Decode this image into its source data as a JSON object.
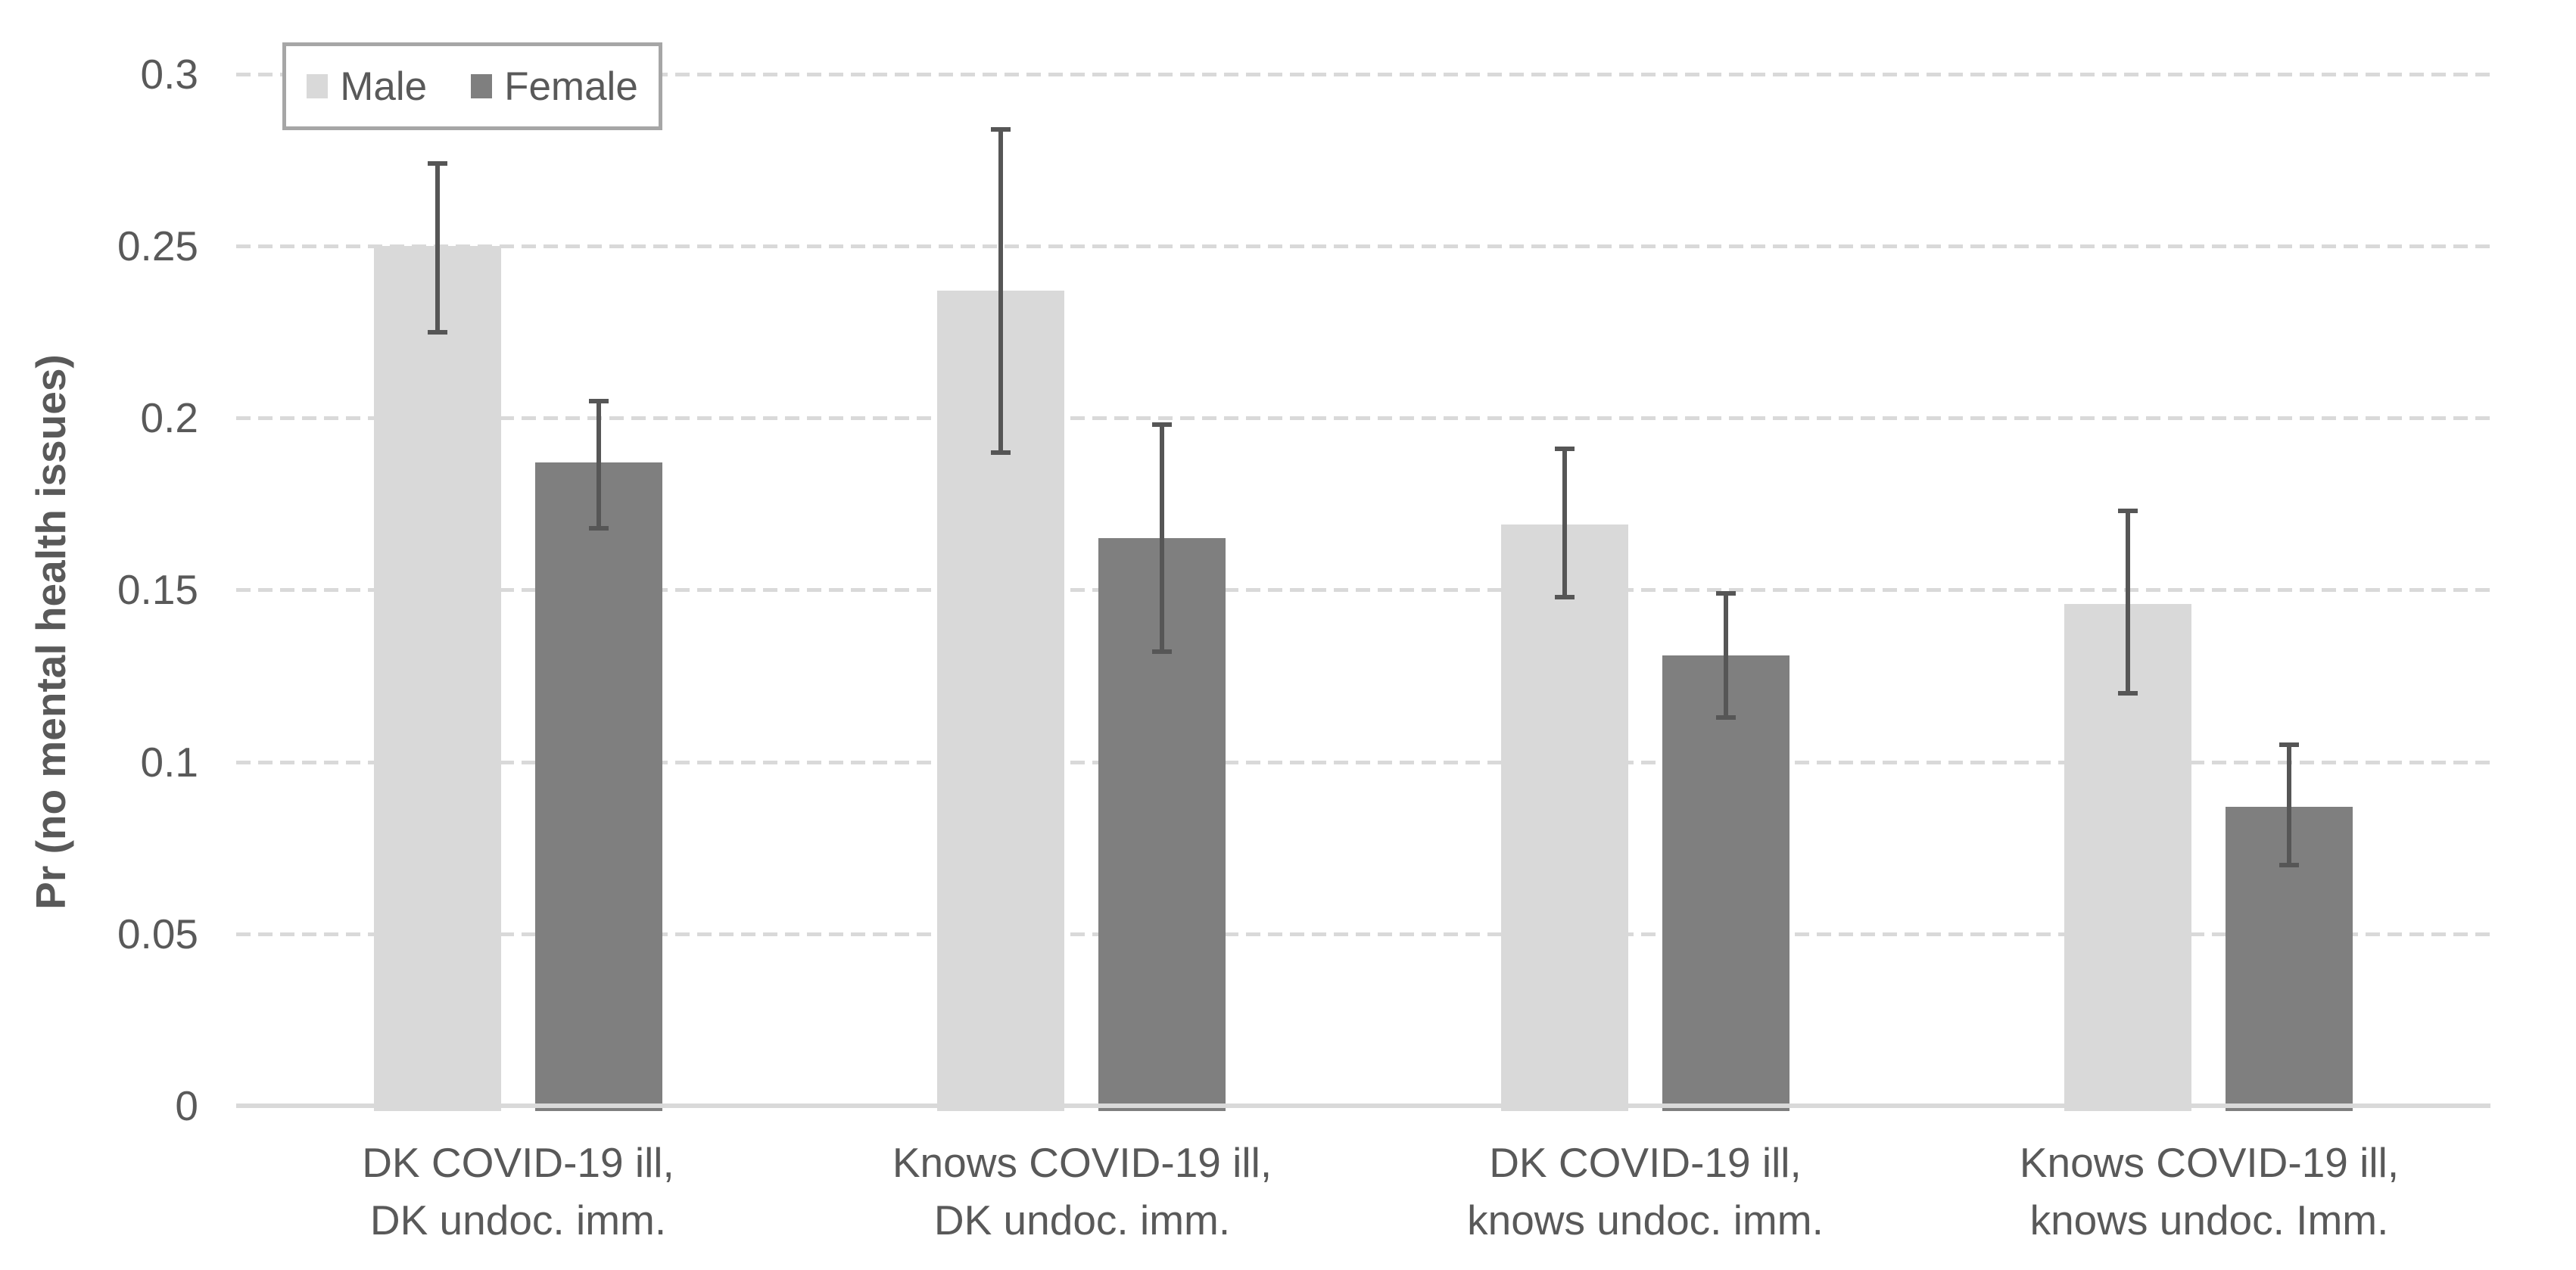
{
  "chart_data": {
    "type": "bar",
    "title": "",
    "xlabel": "",
    "ylabel": "Pr (no mental health issues)",
    "ylim": [
      0,
      0.3
    ],
    "yticks": [
      0,
      0.05,
      0.1,
      0.15,
      0.2,
      0.25,
      0.3
    ],
    "ytick_labels": [
      "0",
      "0.05",
      "0.1",
      "0.15",
      "0.2",
      "0.25",
      "0.3"
    ],
    "grid": "horizontal-dashed",
    "grid_color": "#d9d9d9",
    "axis_line_color": "#d9d9d9",
    "error_bar_color": "#565656",
    "legend_position": "top-left-inside",
    "categories": [
      [
        "DK COVID-19 ill,",
        "DK undoc. imm."
      ],
      [
        "Knows COVID-19 ill,",
        "DK undoc. imm."
      ],
      [
        "DK COVID-19 ill,",
        "knows undoc. imm."
      ],
      [
        "Knows COVID-19 ill,",
        "knows undoc. Imm."
      ]
    ],
    "series": [
      {
        "name": "Male",
        "color": "#d9d9d9",
        "values": [
          0.25,
          0.237,
          0.169,
          0.146
        ],
        "ci_low": [
          0.225,
          0.19,
          0.148,
          0.12
        ],
        "ci_high": [
          0.274,
          0.284,
          0.191,
          0.173
        ]
      },
      {
        "name": "Female",
        "color": "#7f7f7f",
        "values": [
          0.187,
          0.165,
          0.131,
          0.087
        ],
        "ci_low": [
          0.168,
          0.132,
          0.113,
          0.07
        ],
        "ci_high": [
          0.205,
          0.198,
          0.149,
          0.105
        ]
      }
    ]
  }
}
